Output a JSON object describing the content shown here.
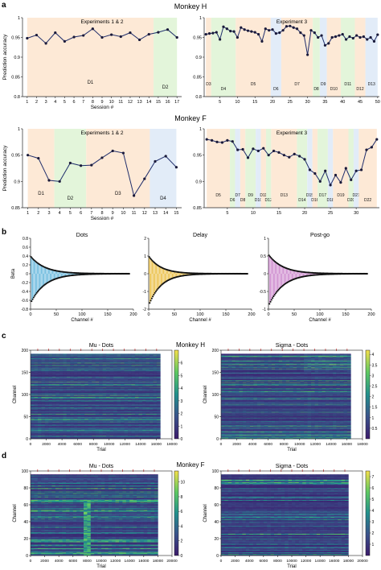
{
  "panel_letters": [
    "a",
    "b",
    "c",
    "d"
  ],
  "row_titles": {
    "monkey_h": "Monkey H",
    "monkey_f": "Monkey F"
  },
  "colors": {
    "line": "#1f2d6b",
    "bg_orange": "#fde9d6",
    "bg_green": "#e3f5da",
    "bg_blue": "#e2ecf8",
    "dots": "#58b0d9",
    "delay": "#e8b832",
    "postgo": "#c77cc8",
    "heat_low": "#3b1a6b",
    "heat_high": "#f5e04a"
  },
  "chart_data": [
    {
      "id": "a1",
      "type": "line",
      "title": "Experiments 1 & 2",
      "xlabel": "Session #",
      "ylabel": "Prediction accuracy",
      "ylim": [
        0.8,
        1.0
      ],
      "yticks": [
        "0.8",
        "0.85",
        "0.9",
        "0.95",
        "1"
      ],
      "xticks": [
        "1",
        "2",
        "3",
        "4",
        "5",
        "6",
        "7",
        "8",
        "9",
        "10",
        "11",
        "12",
        "13",
        "14",
        "15",
        "16",
        "17"
      ],
      "x": [
        1,
        2,
        3,
        4,
        5,
        6,
        7,
        8,
        9,
        10,
        11,
        12,
        13,
        14,
        15,
        16,
        17
      ],
      "values": [
        0.948,
        0.956,
        0.935,
        0.962,
        0.94,
        0.951,
        0.955,
        0.972,
        0.95,
        0.957,
        0.952,
        0.962,
        0.944,
        0.958,
        0.963,
        0.97,
        0.95
      ],
      "regions": [
        {
          "label": "D1",
          "from": 1,
          "to": 14.5,
          "color": "orange"
        },
        {
          "label": "D2",
          "from": 14.5,
          "to": 17,
          "color": "green"
        }
      ]
    },
    {
      "id": "a2",
      "type": "line",
      "title": "Experiment 3",
      "xlabel": "",
      "ylabel": "",
      "ylim": [
        0.8,
        1.0
      ],
      "yticks": [
        "0.8",
        "0.85",
        "0.9",
        "0.95",
        "1"
      ],
      "xticks": [
        "5",
        "10",
        "15",
        "20",
        "25",
        "30",
        "35",
        "40",
        "45",
        "50"
      ],
      "x": [
        1,
        2,
        3,
        4,
        5,
        6,
        7,
        8,
        9,
        10,
        11,
        12,
        13,
        14,
        15,
        16,
        17,
        18,
        19,
        20,
        21,
        22,
        23,
        24,
        25,
        26,
        27,
        28,
        29,
        30,
        31,
        32,
        33,
        34,
        35,
        36,
        37,
        38,
        39,
        40,
        41,
        42,
        43,
        44,
        45,
        46,
        47,
        48,
        49,
        50
      ],
      "values": [
        0.958,
        0.96,
        0.961,
        0.963,
        0.945,
        0.977,
        0.972,
        0.966,
        0.965,
        0.95,
        0.975,
        0.97,
        0.967,
        0.965,
        0.963,
        0.958,
        0.94,
        0.972,
        0.968,
        0.97,
        0.96,
        0.962,
        0.968,
        0.978,
        0.979,
        0.975,
        0.972,
        0.962,
        0.955,
        0.906,
        0.968,
        0.962,
        0.95,
        0.955,
        0.93,
        0.935,
        0.95,
        0.952,
        0.955,
        0.958,
        0.945,
        0.952,
        0.948,
        0.955,
        0.95,
        0.952,
        0.945,
        0.95,
        0.94,
        0.957
      ],
      "regions": [
        {
          "label": "D3",
          "from": 1,
          "to": 2.5,
          "color": "orange"
        },
        {
          "label": "D4",
          "from": 2.5,
          "to": 9.5,
          "color": "green"
        },
        {
          "label": "D5",
          "from": 9.5,
          "to": 19.5,
          "color": "orange"
        },
        {
          "label": "D6",
          "from": 19.5,
          "to": 22.5,
          "color": "blue"
        },
        {
          "label": "D7",
          "from": 22.5,
          "to": 31.5,
          "color": "orange"
        },
        {
          "label": "D8",
          "from": 31.5,
          "to": 33.5,
          "color": "green"
        },
        {
          "label": "D9",
          "from": 33.5,
          "to": 35.5,
          "color": "blue"
        },
        {
          "label": "D10",
          "from": 35.5,
          "to": 39.5,
          "color": "orange"
        },
        {
          "label": "D11",
          "from": 39.5,
          "to": 43.5,
          "color": "green"
        },
        {
          "label": "D12",
          "from": 43.5,
          "to": 46.5,
          "color": "orange"
        },
        {
          "label": "D13",
          "from": 46.5,
          "to": 50,
          "color": "blue"
        }
      ]
    },
    {
      "id": "a3",
      "type": "line",
      "title": "Experiments 1 & 2",
      "xlabel": "Session #",
      "ylabel": "Prediction accuracy",
      "ylim": [
        0.85,
        1.0
      ],
      "yticks": [
        "0.85",
        "0.9",
        "0.95",
        "1"
      ],
      "xticks": [
        "1",
        "2",
        "3",
        "4",
        "5",
        "6",
        "7",
        "8",
        "9",
        "10",
        "11",
        "12",
        "13",
        "14",
        "15"
      ],
      "x": [
        1,
        2,
        3,
        4,
        5,
        6,
        7,
        8,
        9,
        10,
        11,
        12,
        13,
        14,
        15
      ],
      "values": [
        0.95,
        0.944,
        0.902,
        0.9,
        0.935,
        0.93,
        0.931,
        0.945,
        0.958,
        0.954,
        0.873,
        0.905,
        0.938,
        0.948,
        0.927
      ],
      "regions": [
        {
          "label": "D1",
          "from": 1,
          "to": 3.5,
          "color": "orange"
        },
        {
          "label": "D2",
          "from": 3.5,
          "to": 6.5,
          "color": "green"
        },
        {
          "label": "D3",
          "from": 6.5,
          "to": 12.5,
          "color": "orange"
        },
        {
          "label": "D4",
          "from": 12.5,
          "to": 15,
          "color": "blue"
        }
      ]
    },
    {
      "id": "a4",
      "type": "line",
      "title": "Experiment 3",
      "xlabel": "",
      "ylabel": "",
      "ylim": [
        0.85,
        1.0
      ],
      "yticks": [
        "0.85",
        "0.9",
        "0.95",
        "1"
      ],
      "xticks": [
        "5",
        "10",
        "15",
        "20",
        "25",
        "30"
      ],
      "x": [
        1,
        2,
        3,
        4,
        5,
        6,
        7,
        8,
        9,
        10,
        11,
        12,
        13,
        14,
        15,
        16,
        17,
        18,
        19,
        20,
        21,
        22,
        23,
        24,
        25,
        26,
        27,
        28,
        29,
        30,
        31,
        32,
        33,
        34
      ],
      "values": [
        0.98,
        0.978,
        0.975,
        0.974,
        0.978,
        0.976,
        0.96,
        0.961,
        0.945,
        0.962,
        0.958,
        0.963,
        0.95,
        0.958,
        0.955,
        0.95,
        0.946,
        0.952,
        0.948,
        0.942,
        0.922,
        0.915,
        0.9,
        0.92,
        0.893,
        0.912,
        0.898,
        0.925,
        0.903,
        0.92,
        0.922,
        0.96,
        0.965,
        0.98
      ],
      "regions": [
        {
          "label": "D5",
          "from": 1,
          "to": 5.5,
          "color": "orange"
        },
        {
          "label": "D6",
          "from": 5.5,
          "to": 6.5,
          "color": "green"
        },
        {
          "label": "D7",
          "from": 6.5,
          "to": 7.5,
          "color": "blue"
        },
        {
          "label": "D8",
          "from": 7.5,
          "to": 8.5,
          "color": "orange"
        },
        {
          "label": "D9",
          "from": 8.5,
          "to": 10.5,
          "color": "green"
        },
        {
          "label": "D10",
          "from": 10.5,
          "to": 11.5,
          "color": "blue"
        },
        {
          "label": "D11",
          "from": 11.5,
          "to": 12.5,
          "color": "orange"
        },
        {
          "label": "D12",
          "from": 12.5,
          "to": 13.5,
          "color": "green"
        },
        {
          "label": "D13",
          "from": 13.5,
          "to": 18.5,
          "color": "orange"
        },
        {
          "label": "D14",
          "from": 18.5,
          "to": 20.5,
          "color": "green"
        },
        {
          "label": "D15",
          "from": 20.5,
          "to": 21.5,
          "color": "blue"
        },
        {
          "label": "D16",
          "from": 21.5,
          "to": 22.5,
          "color": "orange"
        },
        {
          "label": "D17",
          "from": 22.5,
          "to": 24.5,
          "color": "green"
        },
        {
          "label": "D18",
          "from": 24.5,
          "to": 25.5,
          "color": "blue"
        },
        {
          "label": "D19",
          "from": 25.5,
          "to": 28.5,
          "color": "orange"
        },
        {
          "label": "D20",
          "from": 28.5,
          "to": 29.5,
          "color": "green"
        },
        {
          "label": "D21",
          "from": 29.5,
          "to": 30.5,
          "color": "blue"
        },
        {
          "label": "D22",
          "from": 30.5,
          "to": 34,
          "color": "orange"
        }
      ]
    },
    {
      "id": "b1",
      "type": "scatter",
      "title": "Dots",
      "xlabel": "Channel #",
      "ylabel": "Beta",
      "xlim": [
        0,
        200
      ],
      "ylim": [
        -0.8,
        0.8
      ],
      "xticks": [
        "0",
        "50",
        "100",
        "150",
        "200"
      ],
      "yticks": [
        "-0.8",
        "-0.6",
        "-0.4",
        "-0.2",
        "0",
        "0.2",
        "0.4",
        "0.6",
        "0.8"
      ],
      "pos_amp": 0.38,
      "neg_amp": -0.62,
      "decay": 14,
      "n": 192
    },
    {
      "id": "b2",
      "type": "scatter",
      "title": "Delay",
      "xlabel": "Channel #",
      "ylabel": "",
      "xlim": [
        0,
        200
      ],
      "ylim": [
        -2,
        2
      ],
      "xticks": [
        "0",
        "50",
        "100",
        "150",
        "200"
      ],
      "yticks": [
        "-2",
        "-1",
        "0",
        "1",
        "2"
      ],
      "pos_amp": 0.95,
      "neg_amp": -1.65,
      "decay": 12,
      "n": 192
    },
    {
      "id": "b3",
      "type": "scatter",
      "title": "Post-go",
      "xlabel": "Channel #",
      "ylabel": "",
      "xlim": [
        0,
        200
      ],
      "ylim": [
        -1,
        1
      ],
      "xticks": [
        "0",
        "50",
        "100",
        "150",
        "200"
      ],
      "yticks": [
        "-1",
        "-0.5",
        "0",
        "0.5",
        "1"
      ],
      "pos_amp": 0.52,
      "neg_amp": -0.85,
      "decay": 14,
      "n": 192
    },
    {
      "id": "c1",
      "type": "heatmap",
      "title": "Mu - Dots",
      "xlabel": "Trial",
      "ylabel": "Channel",
      "xlim": [
        0,
        18000
      ],
      "ylim": [
        0,
        200
      ],
      "data_x_max": 16500,
      "rows": 192,
      "xticks": [
        "0",
        "2000",
        "4000",
        "6000",
        "8000",
        "10000",
        "12000",
        "14000",
        "16000",
        "18000"
      ],
      "yticks": [
        "0",
        "50",
        "100",
        "150",
        "200"
      ],
      "cbar_range": [
        0,
        7
      ],
      "cbar_ticks": [
        "0",
        "1",
        "2",
        "3",
        "4",
        "5",
        "6"
      ]
    },
    {
      "id": "c2",
      "type": "heatmap",
      "title": "Sigma - Dots",
      "xlabel": "Trial",
      "ylabel": "Channel",
      "xlim": [
        0,
        18000
      ],
      "ylim": [
        0,
        200
      ],
      "data_x_max": 16500,
      "rows": 192,
      "xticks": [
        "0",
        "2000",
        "4000",
        "6000",
        "8000",
        "10000",
        "12000",
        "14000",
        "16000",
        "18000"
      ],
      "yticks": [
        "0",
        "50",
        "100",
        "150",
        "200"
      ],
      "cbar_range": [
        0,
        4.2
      ],
      "cbar_ticks": [
        "0.5",
        "1",
        "1.5",
        "2",
        "2.5",
        "3",
        "3.5",
        "4"
      ]
    },
    {
      "id": "d1",
      "type": "heatmap",
      "title": "Mu - Dots",
      "xlabel": "Trial",
      "ylabel": "Channel",
      "xlim": [
        0,
        20000
      ],
      "ylim": [
        0,
        100
      ],
      "data_x_max": 18000,
      "rows": 96,
      "xticks": [
        "0",
        "2000",
        "4000",
        "6000",
        "8000",
        "10000",
        "12000",
        "14000",
        "16000",
        "18000",
        "20000"
      ],
      "yticks": [
        "0",
        "20",
        "40",
        "60",
        "80",
        "100"
      ],
      "cbar_range": [
        0,
        11.5
      ],
      "cbar_ticks": [
        "0",
        "2",
        "4",
        "6",
        "8",
        "10"
      ]
    },
    {
      "id": "d2",
      "type": "heatmap",
      "title": "Sigma - Dots",
      "xlabel": "Trial",
      "ylabel": "Channel",
      "xlim": [
        0,
        20000
      ],
      "ylim": [
        0,
        100
      ],
      "data_x_max": 18000,
      "rows": 96,
      "xticks": [
        "0",
        "2000",
        "4000",
        "6000",
        "8000",
        "10000",
        "12000",
        "14000",
        "16000",
        "18000",
        "20000"
      ],
      "yticks": [
        "0",
        "20",
        "40",
        "60",
        "80",
        "100"
      ],
      "cbar_range": [
        0,
        7.5
      ],
      "cbar_ticks": [
        "1",
        "2",
        "3",
        "4",
        "5",
        "6",
        "7"
      ]
    }
  ]
}
